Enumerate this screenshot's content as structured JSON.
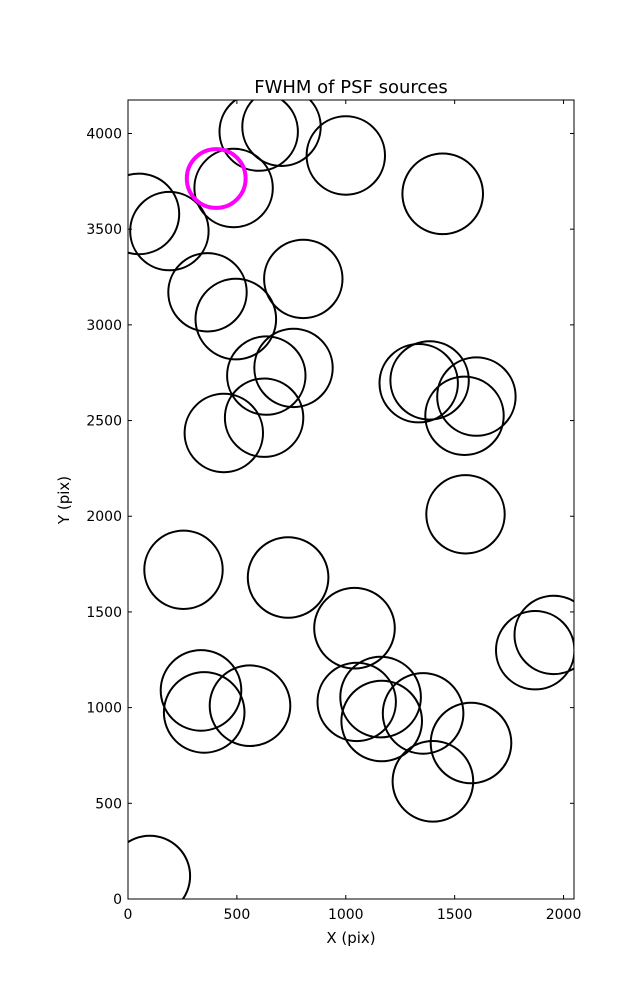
{
  "chart_data": {
    "type": "scatter",
    "title": "FWHM of PSF sources",
    "xlabel": "X (pix)",
    "ylabel": "Y (pix)",
    "xlim": [
      0,
      2048
    ],
    "ylim": [
      0,
      4175
    ],
    "xticks": [
      0,
      500,
      1000,
      1500,
      2000
    ],
    "yticks": [
      0,
      500,
      1000,
      1500,
      2000,
      2500,
      3000,
      3500,
      4000
    ],
    "grid": false,
    "colors": {
      "default": "#000000",
      "highlight": "#ff00ff"
    },
    "points": [
      {
        "x": 600,
        "y": 4010,
        "r": 180
      },
      {
        "x": 705,
        "y": 4035,
        "r": 180
      },
      {
        "x": 1000,
        "y": 3885,
        "r": 180
      },
      {
        "x": 1445,
        "y": 3685,
        "r": 185
      },
      {
        "x": 485,
        "y": 3715,
        "r": 180
      },
      {
        "x": 50,
        "y": 3580,
        "r": 185
      },
      {
        "x": 190,
        "y": 3490,
        "r": 180
      },
      {
        "x": 805,
        "y": 3240,
        "r": 180
      },
      {
        "x": 365,
        "y": 3170,
        "r": 180
      },
      {
        "x": 495,
        "y": 3030,
        "r": 185
      },
      {
        "x": 760,
        "y": 2775,
        "r": 180
      },
      {
        "x": 635,
        "y": 2735,
        "r": 180
      },
      {
        "x": 1335,
        "y": 2695,
        "r": 180
      },
      {
        "x": 1385,
        "y": 2710,
        "r": 180
      },
      {
        "x": 1600,
        "y": 2625,
        "r": 180
      },
      {
        "x": 1545,
        "y": 2525,
        "r": 180
      },
      {
        "x": 625,
        "y": 2515,
        "r": 180
      },
      {
        "x": 440,
        "y": 2435,
        "r": 180
      },
      {
        "x": 1550,
        "y": 2010,
        "r": 180
      },
      {
        "x": 255,
        "y": 1720,
        "r": 180
      },
      {
        "x": 735,
        "y": 1680,
        "r": 185
      },
      {
        "x": 1040,
        "y": 1415,
        "r": 185
      },
      {
        "x": 1955,
        "y": 1380,
        "r": 180
      },
      {
        "x": 1870,
        "y": 1300,
        "r": 180
      },
      {
        "x": 335,
        "y": 1090,
        "r": 185
      },
      {
        "x": 1050,
        "y": 1030,
        "r": 180
      },
      {
        "x": 1160,
        "y": 1055,
        "r": 185
      },
      {
        "x": 560,
        "y": 1010,
        "r": 185
      },
      {
        "x": 350,
        "y": 975,
        "r": 185
      },
      {
        "x": 1355,
        "y": 970,
        "r": 185
      },
      {
        "x": 1165,
        "y": 930,
        "r": 185
      },
      {
        "x": 1575,
        "y": 815,
        "r": 185
      },
      {
        "x": 1400,
        "y": 615,
        "r": 185
      },
      {
        "x": 100,
        "y": 120,
        "r": 185
      },
      {
        "x": 405,
        "y": 3765,
        "r": 135,
        "highlight": true
      }
    ]
  }
}
